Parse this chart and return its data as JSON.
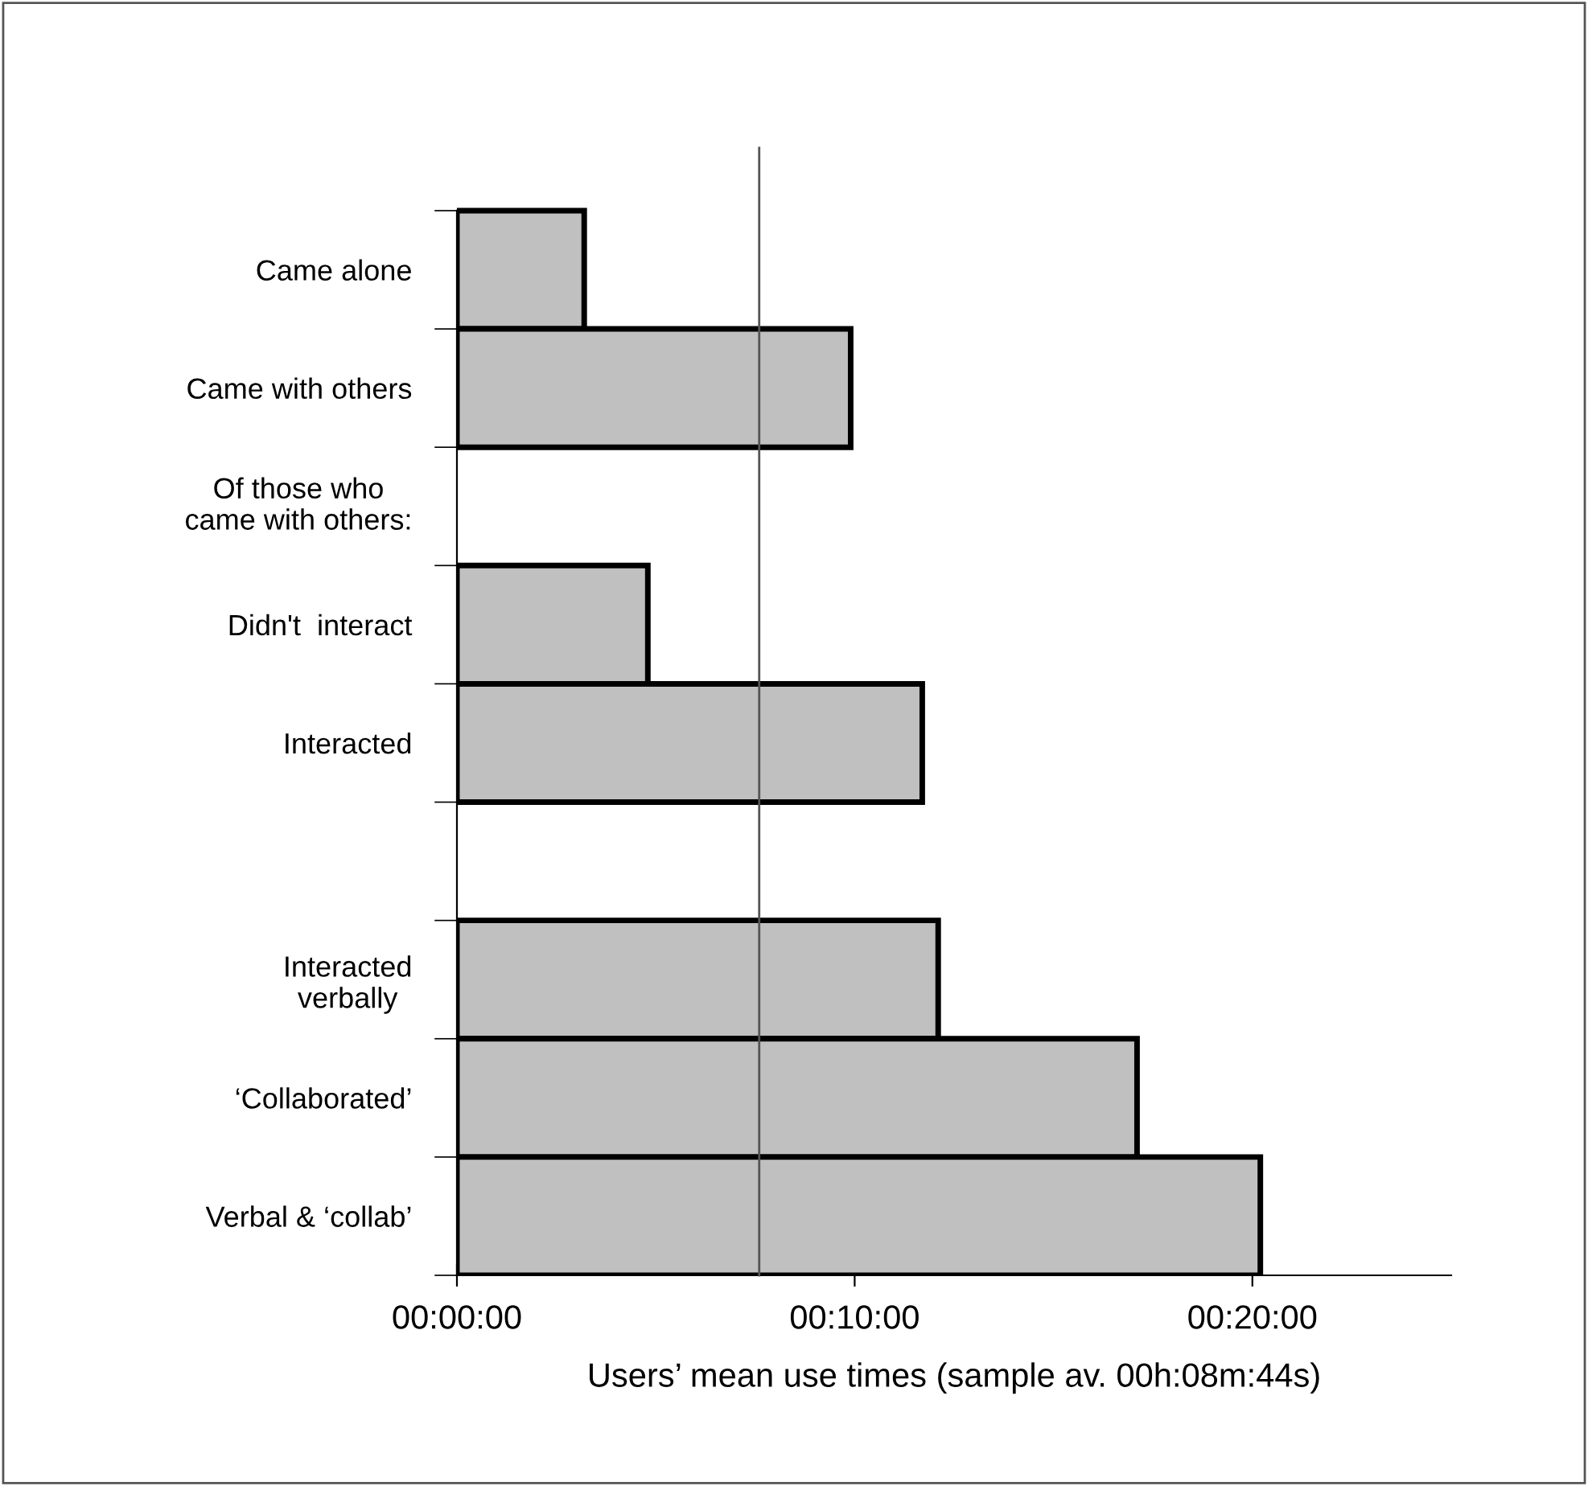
{
  "chart_data": {
    "type": "bar",
    "orientation": "horizontal",
    "categories": [
      "Came alone",
      "Came with others",
      null,
      "Didn't  interact",
      "Interacted",
      null,
      "Interacted\nverbally",
      "‘Collaborated’",
      "Verbal & ‘collab’"
    ],
    "values": [
      3.2,
      9.9,
      null,
      4.8,
      11.7,
      null,
      12.1,
      17.1,
      20.2
    ],
    "color": "#c0c0c0",
    "annotations": [
      "Of those who\ncame with others:"
    ],
    "xlabel": "Users’ mean use times (sample av. 00h:08m:44s)",
    "xlim": [
      0,
      25
    ],
    "xticks": [
      {
        "value": 0,
        "label": "00:00:00"
      },
      {
        "value": 10,
        "label": "00:10:00"
      },
      {
        "value": 20,
        "label": "00:20:00"
      }
    ],
    "ref_lines": [
      {
        "axis": "x",
        "value": 7.6,
        "label": null,
        "color": "#555555"
      }
    ],
    "grid": false,
    "legend": false
  }
}
